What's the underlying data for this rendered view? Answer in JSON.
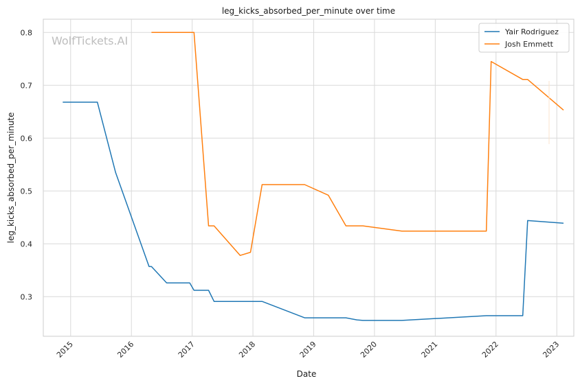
{
  "chart_data": {
    "type": "line",
    "title": "leg_kicks_absorbed_per_minute over time",
    "xlabel": "Date",
    "ylabel": "leg_kicks_absorbed_per_minute",
    "watermark": "WolfTickets.AI",
    "xlim": [
      2014.55,
      2023.28
    ],
    "ylim": [
      0.225,
      0.825
    ],
    "x_ticks": [
      2015,
      2016,
      2017,
      2018,
      2019,
      2020,
      2021,
      2022,
      2023
    ],
    "x_tick_labels": [
      "2015",
      "2016",
      "2017",
      "2018",
      "2019",
      "2020",
      "2021",
      "2022",
      "2023"
    ],
    "y_ticks": [
      0.3,
      0.4,
      0.5,
      0.6,
      0.7,
      0.8
    ],
    "y_tick_labels": [
      "0.3",
      "0.4",
      "0.5",
      "0.6",
      "0.7",
      "0.8"
    ],
    "grid": true,
    "legend_position": "top-right",
    "series": [
      {
        "name": "Yair Rodriguez",
        "color": "#1f77b4",
        "points": [
          [
            2014.87,
            0.668
          ],
          [
            2015.44,
            0.668
          ],
          [
            2015.74,
            0.535
          ],
          [
            2016.29,
            0.357
          ],
          [
            2016.33,
            0.357
          ],
          [
            2016.58,
            0.326
          ],
          [
            2016.96,
            0.326
          ],
          [
            2017.03,
            0.312
          ],
          [
            2017.27,
            0.312
          ],
          [
            2017.36,
            0.291
          ],
          [
            2018.15,
            0.291
          ],
          [
            2018.85,
            0.26
          ],
          [
            2019.53,
            0.26
          ],
          [
            2019.71,
            0.256
          ],
          [
            2019.81,
            0.255
          ],
          [
            2020.45,
            0.255
          ],
          [
            2021.84,
            0.264
          ],
          [
            2022.44,
            0.264
          ],
          [
            2022.52,
            0.444
          ],
          [
            2023.11,
            0.439
          ]
        ]
      },
      {
        "name": "Josh Emmett",
        "color": "#ff7f0e",
        "points": [
          [
            2016.33,
            0.8
          ],
          [
            2017.03,
            0.8
          ],
          [
            2017.27,
            0.434
          ],
          [
            2017.36,
            0.434
          ],
          [
            2017.79,
            0.378
          ],
          [
            2017.96,
            0.384
          ],
          [
            2018.15,
            0.512
          ],
          [
            2018.85,
            0.512
          ],
          [
            2019.24,
            0.492
          ],
          [
            2019.53,
            0.434
          ],
          [
            2019.81,
            0.434
          ],
          [
            2020.45,
            0.424
          ],
          [
            2021.84,
            0.424
          ],
          [
            2021.92,
            0.745
          ],
          [
            2022.44,
            0.711
          ],
          [
            2022.52,
            0.711
          ],
          [
            2023.11,
            0.653
          ]
        ]
      }
    ]
  }
}
